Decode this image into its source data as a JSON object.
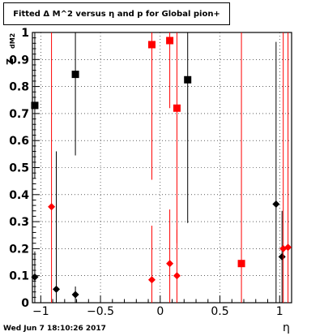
{
  "chart_data": {
    "type": "scatter",
    "title": "Fitted Δ M^2 versus η and p for Global pion+",
    "xlabel": "η",
    "ylabel": "Z",
    "ylabel_sub": "dM2",
    "xlim": [
      -1.07,
      1.1
    ],
    "ylim": [
      0,
      1.0
    ],
    "x_ticks": [
      -1,
      -0.5,
      0,
      0.5,
      1
    ],
    "x_tick_labels": [
      "−1",
      "−0.5",
      "0",
      "0.5",
      "1"
    ],
    "y_ticks": [
      0,
      0.1,
      0.2,
      0.3,
      0.4,
      0.5,
      0.6,
      0.7,
      0.8,
      0.9,
      1
    ],
    "y_tick_labels": [
      "0",
      "0.1",
      "0.2",
      "0.3",
      "0.4",
      "0.5",
      "0.6",
      "0.7",
      "0.8",
      "0.9",
      "1"
    ],
    "grid": true,
    "series": [
      {
        "marker": "square",
        "color": "#000000",
        "points": [
          {
            "x": -1.05,
            "y": 0.73,
            "err": 0.27
          },
          {
            "x": -0.71,
            "y": 0.845,
            "err": 0.3
          },
          {
            "x": 0.23,
            "y": 0.825,
            "err": 0.53
          }
        ]
      },
      {
        "marker": "diamond",
        "color": "#000000",
        "points": [
          {
            "x": -1.05,
            "y": 0.095,
            "err": 0.095
          },
          {
            "x": -0.87,
            "y": 0.05,
            "err": 0.51
          },
          {
            "x": -0.71,
            "y": 0.03,
            "err": 0.03
          },
          {
            "x": 0.97,
            "y": 0.365,
            "err": 0.6
          },
          {
            "x": 1.02,
            "y": 0.17,
            "err": 0.17
          }
        ]
      },
      {
        "marker": "square",
        "color": "#ff0000",
        "points": [
          {
            "x": -0.07,
            "y": 0.955,
            "err": 0.5
          },
          {
            "x": 0.08,
            "y": 0.97,
            "err": 0.25
          },
          {
            "x": 0.14,
            "y": 0.72,
            "err": 0.5
          },
          {
            "x": 0.68,
            "y": 0.145,
            "err": 0.9
          }
        ]
      },
      {
        "marker": "diamond",
        "color": "#ff0000",
        "points": [
          {
            "x": -0.91,
            "y": 0.355,
            "err": 0.75
          },
          {
            "x": -0.07,
            "y": 0.085,
            "err": 0.2
          },
          {
            "x": 0.08,
            "y": 0.145,
            "err": 0.2
          },
          {
            "x": 0.14,
            "y": 0.1,
            "err": 0.17
          },
          {
            "x": 1.03,
            "y": 0.2,
            "err": 0.8
          },
          {
            "x": 1.07,
            "y": 0.205,
            "err": 0.8
          }
        ]
      }
    ]
  },
  "footer": "Wed Jun  7 18:10:26 2017"
}
